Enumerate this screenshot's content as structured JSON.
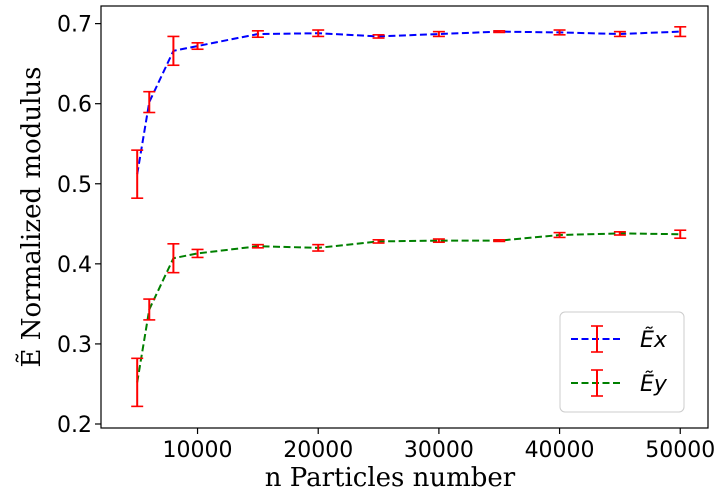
{
  "chart_data": {
    "type": "line",
    "xlabel": "n Particles number",
    "ylabel": "Ẽ Normalized modulus",
    "xlim": [
      2000,
      52300
    ],
    "ylim": [
      0.195,
      0.722
    ],
    "x_ticks": [
      "10000",
      "20000",
      "30000",
      "40000",
      "50000"
    ],
    "y_ticks": [
      "0.2",
      "0.3",
      "0.4",
      "0.5",
      "0.6",
      "0.7"
    ],
    "x_tick_values": [
      10000,
      20000,
      30000,
      40000,
      50000
    ],
    "y_tick_values": [
      0.2,
      0.3,
      0.4,
      0.5,
      0.6,
      0.7
    ],
    "grid": false,
    "legend_position": "lower right",
    "error_bar_color": "#ff0000",
    "x": [
      5000,
      6000,
      8000,
      10000,
      15000,
      20000,
      25000,
      30000,
      35000,
      40000,
      45000,
      50000
    ],
    "series": [
      {
        "name": "Ẽx",
        "color": "#0000ff",
        "linestyle": "dashed",
        "values": [
          0.512,
          0.602,
          0.666,
          0.672,
          0.687,
          0.688,
          0.684,
          0.687,
          0.69,
          0.689,
          0.687,
          0.69
        ],
        "errors": [
          0.03,
          0.013,
          0.018,
          0.004,
          0.004,
          0.004,
          0.002,
          0.003,
          0.001,
          0.003,
          0.003,
          0.006
        ]
      },
      {
        "name": "Ẽy",
        "color": "#008000",
        "linestyle": "dashed",
        "values": [
          0.252,
          0.343,
          0.407,
          0.413,
          0.422,
          0.42,
          0.428,
          0.429,
          0.429,
          0.436,
          0.438,
          0.437
        ],
        "errors": [
          0.03,
          0.013,
          0.018,
          0.005,
          0.002,
          0.004,
          0.002,
          0.002,
          0.001,
          0.003,
          0.002,
          0.005
        ]
      }
    ]
  }
}
